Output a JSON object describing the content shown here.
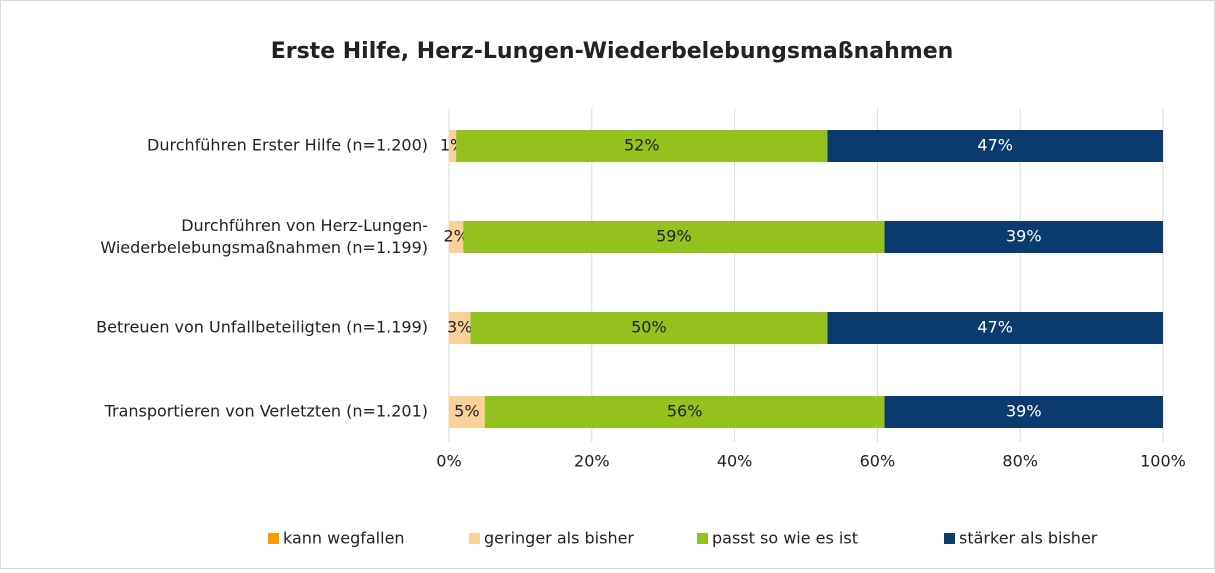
{
  "chart_data": {
    "type": "stacked_barh",
    "title": "Erste Hilfe, Herz-Lungen-Wiederbelebungsmaßnahmen",
    "categories": [
      "Durchführen Erster Hilfe (n=1.200)",
      "Durchführen von Herz-Lungen-\nWiederbelebungsmaßnahmen (n=1.199)",
      "Betreuen von Unfallbeteiligten (n=1.199)",
      "Transportieren von Verletzten (n=1.201)"
    ],
    "series": [
      {
        "name": "kann wegfallen",
        "color": "#f59c00",
        "values": [
          0,
          0,
          0,
          0
        ]
      },
      {
        "name": "geringer als bisher",
        "color": "#fbd19a",
        "values": [
          1,
          2,
          3,
          5
        ],
        "value_labels": [
          "1%",
          "2%",
          "3%",
          "5%"
        ]
      },
      {
        "name": "passt so wie es ist",
        "color": "#95c11f",
        "values": [
          52,
          59,
          50,
          56
        ],
        "value_labels": [
          "52%",
          "59%",
          "50%",
          "56%"
        ]
      },
      {
        "name": "stärker als bisher",
        "color": "#0b3a6e",
        "values": [
          47,
          39,
          47,
          39
        ],
        "value_labels": [
          "47%",
          "39%",
          "47%",
          "39%"
        ]
      }
    ],
    "xlim": [
      0,
      100
    ],
    "xticks": [
      {
        "value": 0,
        "label": "0%"
      },
      {
        "value": 20,
        "label": "20%"
      },
      {
        "value": 40,
        "label": "40%"
      },
      {
        "value": 60,
        "label": "60%"
      },
      {
        "value": 80,
        "label": "80%"
      },
      {
        "value": 100,
        "label": "100%"
      }
    ],
    "grid": true,
    "legend": "bottom"
  }
}
